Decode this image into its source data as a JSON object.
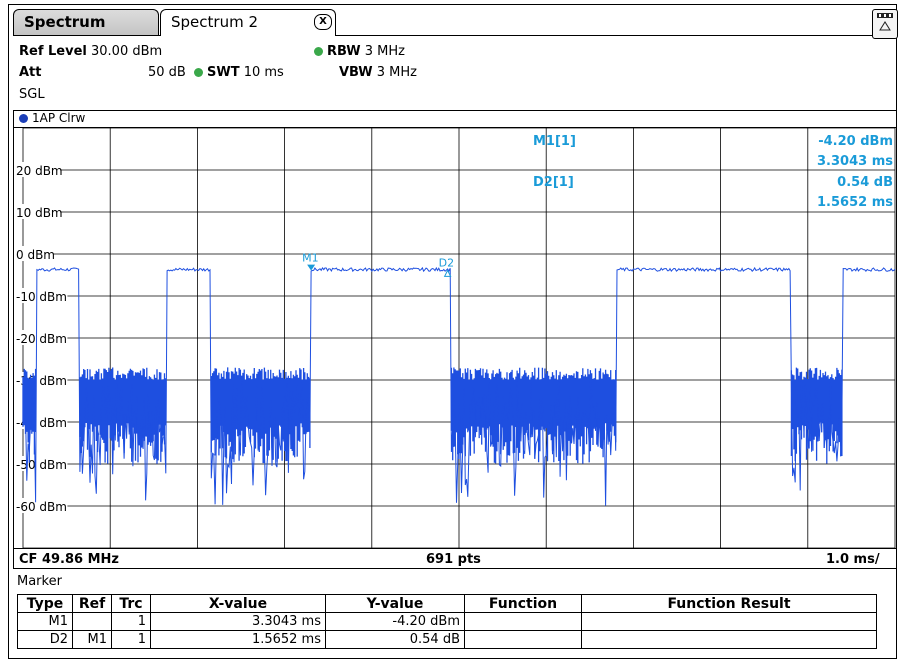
{
  "tabs": [
    {
      "label": "Spectrum"
    },
    {
      "label": "Spectrum 2"
    }
  ],
  "tab_close_label": "X",
  "settings": {
    "ref_level_label": "Ref Level",
    "ref_level_value": "30.00 dBm",
    "att_label": "Att",
    "att_value": "50 dB",
    "swt_label": "SWT",
    "swt_value": "10 ms",
    "rbw_label": "RBW",
    "rbw_value": "3 MHz",
    "vbw_label": "VBW",
    "vbw_value": "3 MHz",
    "sweep_mode": "SGL"
  },
  "trace_label": "1AP Clrw",
  "y_axis": {
    "unit": "dBm",
    "ticks": [
      "20 dBm",
      "10 dBm",
      "0 dBm",
      "-10 dBm",
      "-20 dBm",
      "-30 dBm",
      "-40 dBm",
      "-50 dBm",
      "-60 dBm"
    ],
    "range": [
      -70,
      30
    ],
    "ref_level": 30
  },
  "x_axis": {
    "span_ms": 10,
    "divisions": 10
  },
  "marker_readout": {
    "m1_label": "M1[1]",
    "m1_y": "-4.20 dBm",
    "m1_x": "3.3043 ms",
    "d2_label": "D2[1]",
    "d2_y": "0.54 dB",
    "d2_x": "1.5652 ms"
  },
  "markers_on_trace": [
    {
      "name": "M1",
      "x_ms": 3.3043,
      "y_dbm": -4.2
    },
    {
      "name": "D2",
      "x_ms": 4.8695,
      "y_dbm": -3.66
    }
  ],
  "bottom": {
    "cf": "CF 49.86 MHz",
    "pts": "691 pts",
    "scale": "1.0 ms/"
  },
  "marker_table": {
    "title": "Marker",
    "headers": [
      "Type",
      "Ref",
      "Trc",
      "X-value",
      "Y-value",
      "Function",
      "Function Result"
    ],
    "rows": [
      [
        "M1",
        "",
        "1",
        "3.3043 ms",
        "-4.20 dBm",
        "",
        ""
      ],
      [
        "D2",
        "M1",
        "1",
        "1.5652 ms",
        "0.54 dB",
        "",
        ""
      ]
    ]
  },
  "colors": {
    "trace": "#1e4fe0",
    "marker_text": "#1a9bd8",
    "grid": "#000000",
    "led": "#3aa84a"
  },
  "chart_data": {
    "type": "line",
    "x_unit": "ms",
    "y_unit": "dBm",
    "xlim": [
      0,
      10
    ],
    "ylim": [
      -70,
      30
    ],
    "grid": true,
    "title": "",
    "series": [
      {
        "bursts_on_ms": [
          [
            0.15,
            0.65
          ],
          [
            1.65,
            2.15
          ],
          [
            3.3,
            4.9
          ],
          [
            6.8,
            8.8
          ],
          [
            9.4,
            10.0
          ]
        ],
        "on_level_dbm": -3.7,
        "off_segments_ms": [
          [
            0.0,
            0.15
          ],
          [
            0.65,
            1.65
          ],
          [
            2.15,
            3.3
          ],
          [
            4.9,
            6.8
          ],
          [
            8.8,
            9.4
          ]
        ],
        "off_level_dbm_range": [
          -48,
          -30
        ]
      }
    ]
  }
}
